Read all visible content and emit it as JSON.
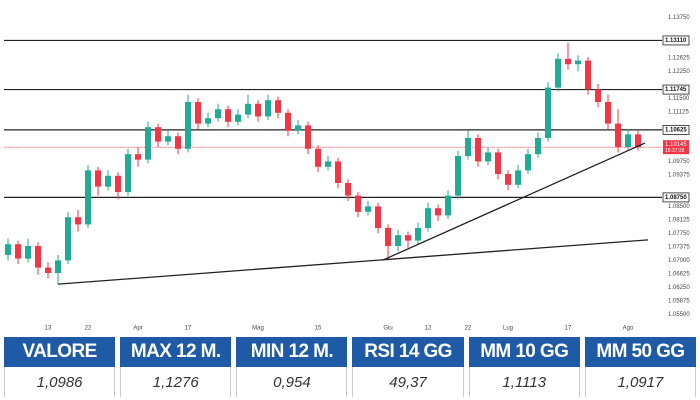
{
  "chart_data": {
    "type": "candlestick",
    "categories": [
      null,
      null,
      null,
      null,
      "13",
      null,
      null,
      null,
      "22",
      null,
      null,
      null,
      null,
      "Apr",
      null,
      null,
      null,
      null,
      "17",
      null,
      null,
      null,
      null,
      null,
      null,
      "Mag",
      null,
      null,
      null,
      null,
      null,
      "15",
      null,
      null,
      null,
      null,
      null,
      null,
      "Giu",
      null,
      null,
      null,
      "12",
      null,
      null,
      null,
      "22",
      null,
      null,
      null,
      "Lug",
      null,
      null,
      null,
      null,
      null,
      "17",
      null,
      null,
      null,
      null,
      null,
      "Ago",
      null
    ],
    "ohlc": [
      [
        1.0715,
        1.076,
        1.07,
        1.0745
      ],
      [
        1.0745,
        1.0755,
        1.069,
        1.0705
      ],
      [
        1.0705,
        1.076,
        1.0695,
        1.074
      ],
      [
        1.074,
        1.075,
        1.066,
        1.068
      ],
      [
        1.068,
        1.0695,
        1.065,
        1.0665
      ],
      [
        1.0665,
        1.0715,
        1.0634,
        1.07
      ],
      [
        1.07,
        1.0835,
        1.069,
        1.082
      ],
      [
        1.082,
        1.084,
        1.078,
        1.08
      ],
      [
        1.08,
        1.0965,
        1.079,
        1.095
      ],
      [
        1.095,
        1.096,
        1.088,
        1.0905
      ],
      [
        1.0905,
        1.095,
        1.0895,
        1.0935
      ],
      [
        1.0935,
        1.0945,
        1.087,
        1.089
      ],
      [
        1.089,
        1.101,
        1.088,
        1.0995
      ],
      [
        1.0995,
        1.1015,
        1.096,
        1.098
      ],
      [
        1.098,
        1.1085,
        1.097,
        1.107
      ],
      [
        1.107,
        1.108,
        1.1015,
        1.103
      ],
      [
        1.103,
        1.106,
        1.102,
        1.1045
      ],
      [
        1.1045,
        1.1055,
        1.0995,
        1.101
      ],
      [
        1.101,
        1.116,
        1.1,
        1.114
      ],
      [
        1.114,
        1.115,
        1.1065,
        1.108
      ],
      [
        1.108,
        1.111,
        1.107,
        1.1095
      ],
      [
        1.1095,
        1.1135,
        1.1085,
        1.112
      ],
      [
        1.112,
        1.113,
        1.107,
        1.1085
      ],
      [
        1.1085,
        1.112,
        1.1075,
        1.1105
      ],
      [
        1.1105,
        1.116,
        1.1095,
        1.1135
      ],
      [
        1.1135,
        1.1145,
        1.1085,
        1.11
      ],
      [
        1.11,
        1.116,
        1.109,
        1.1145
      ],
      [
        1.1145,
        1.1155,
        1.1095,
        1.111
      ],
      [
        1.111,
        1.112,
        1.1045,
        1.106
      ],
      [
        1.106,
        1.109,
        1.105,
        1.1075
      ],
      [
        1.1075,
        1.1085,
        1.0995,
        1.101
      ],
      [
        1.101,
        1.102,
        1.0945,
        1.096
      ],
      [
        1.096,
        1.099,
        1.095,
        1.0975
      ],
      [
        1.0975,
        1.0985,
        1.09,
        1.0915
      ],
      [
        1.0915,
        1.0925,
        1.0865,
        1.088
      ],
      [
        1.088,
        1.089,
        1.082,
        1.0835
      ],
      [
        1.0835,
        1.0865,
        1.0825,
        1.085
      ],
      [
        1.085,
        1.086,
        1.0775,
        1.079
      ],
      [
        1.079,
        1.08,
        1.07,
        1.074
      ],
      [
        1.074,
        1.0785,
        1.0725,
        1.077
      ],
      [
        1.077,
        1.078,
        1.0735,
        1.0755
      ],
      [
        1.0755,
        1.0805,
        1.0745,
        1.079
      ],
      [
        1.079,
        1.086,
        1.078,
        1.0845
      ],
      [
        1.0845,
        1.0855,
        1.081,
        1.0825
      ],
      [
        1.0825,
        1.0895,
        1.0815,
        1.088
      ],
      [
        1.088,
        1.1005,
        1.087,
        1.099
      ],
      [
        1.099,
        1.106,
        1.098,
        1.104
      ],
      [
        1.104,
        1.105,
        1.096,
        1.0975
      ],
      [
        1.0975,
        1.1015,
        1.0965,
        1.1
      ],
      [
        1.1,
        1.101,
        1.0925,
        1.094
      ],
      [
        1.094,
        1.095,
        1.0895,
        1.091
      ],
      [
        1.091,
        1.0965,
        1.09,
        1.095
      ],
      [
        1.095,
        1.101,
        1.094,
        1.0995
      ],
      [
        1.0995,
        1.1055,
        1.0985,
        1.104
      ],
      [
        1.104,
        1.1195,
        1.103,
        1.118
      ],
      [
        1.118,
        1.1275,
        1.117,
        1.126
      ],
      [
        1.126,
        1.1305,
        1.123,
        1.1245
      ],
      [
        1.1245,
        1.127,
        1.1225,
        1.1255
      ],
      [
        1.1255,
        1.1265,
        1.116,
        1.1175
      ],
      [
        1.1175,
        1.119,
        1.1125,
        1.114
      ],
      [
        1.114,
        1.116,
        1.1065,
        1.108
      ],
      [
        1.108,
        1.112,
        1.1,
        1.1015
      ],
      [
        1.1015,
        1.1065,
        1.1005,
        1.105
      ],
      [
        1.105,
        1.106,
        1.1005,
        1.1015
      ]
    ],
    "up_color": "#22ab94",
    "down_color": "#f23645",
    "ylim": [
      1.054,
      1.139
    ],
    "yticks": [
      {
        "value": 1.055,
        "label": "1.05500"
      },
      {
        "value": 1.05875,
        "label": "1.05875"
      },
      {
        "value": 1.0625,
        "label": "1.06250"
      },
      {
        "value": 1.06625,
        "label": "1.06625"
      },
      {
        "value": 1.07,
        "label": "1.07000"
      },
      {
        "value": 1.07375,
        "label": "1.07375"
      },
      {
        "value": 1.0775,
        "label": "1.07750"
      },
      {
        "value": 1.08125,
        "label": "1.08125"
      },
      {
        "value": 1.085,
        "label": "1.08500"
      },
      {
        "value": 1.09375,
        "label": "1.09375"
      },
      {
        "value": 1.0975,
        "label": "1.09750"
      },
      {
        "value": 1.11125,
        "label": "1.11125"
      },
      {
        "value": 1.115,
        "label": "1.11500"
      },
      {
        "value": 1.1225,
        "label": "1.12250"
      },
      {
        "value": 1.12625,
        "label": "1.12625"
      },
      {
        "value": 1.1375,
        "label": "1.13750"
      }
    ],
    "grid": false,
    "levels": [
      {
        "value": 1.1311,
        "label": "1.13110"
      },
      {
        "value": 1.11745,
        "label": "1.11745"
      },
      {
        "value": 1.10625,
        "label": "1.10625"
      },
      {
        "value": 1.0875,
        "label": "1.08750"
      }
    ],
    "last_price": {
      "value": 1.10145,
      "label": "1.10145",
      "timer": "15:37:28"
    },
    "trendlines": [
      {
        "x": [
          5,
          64
        ],
        "y": [
          1.0634,
          1.0757
        ]
      },
      {
        "x": [
          37.5,
          63.7
        ],
        "y": [
          1.0701,
          1.1026
        ]
      }
    ]
  },
  "table": {
    "headers": [
      "VALORE",
      "MAX 12 M.",
      "MIN 12 M.",
      "RSI 14 GG",
      "MM 10 GG",
      "MM 50 GG"
    ],
    "values": [
      "1,0986",
      "1,1276",
      "0,954",
      "49,37",
      "1,1113",
      "1,0917"
    ]
  }
}
